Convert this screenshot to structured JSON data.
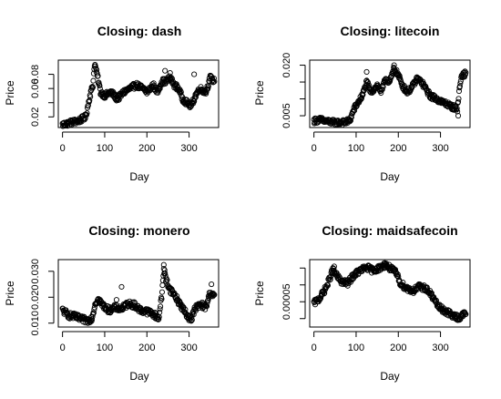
{
  "chart_data": [
    {
      "type": "scatter",
      "title": "Closing: dash",
      "xlabel": "Day",
      "ylabel": "Price",
      "xlim": [
        -10,
        370
      ],
      "ylim": [
        0.005,
        0.1
      ],
      "xticks": [
        0,
        100,
        200,
        300
      ],
      "yticks": [
        0.02,
        0.04,
        0.06,
        0.08
      ],
      "yticklabels": [
        "0.02",
        "",
        "0.06",
        "0.08"
      ],
      "anchors": [
        [
          0,
          0.009
        ],
        [
          20,
          0.012
        ],
        [
          40,
          0.015
        ],
        [
          55,
          0.02
        ],
        [
          65,
          0.05
        ],
        [
          72,
          0.065
        ],
        [
          76,
          0.095
        ],
        [
          82,
          0.08
        ],
        [
          90,
          0.055
        ],
        [
          100,
          0.05
        ],
        [
          115,
          0.055
        ],
        [
          130,
          0.045
        ],
        [
          145,
          0.055
        ],
        [
          160,
          0.06
        ],
        [
          175,
          0.065
        ],
        [
          190,
          0.06
        ],
        [
          200,
          0.055
        ],
        [
          215,
          0.065
        ],
        [
          225,
          0.055
        ],
        [
          235,
          0.07
        ],
        [
          245,
          0.07
        ],
        [
          255,
          0.075
        ],
        [
          265,
          0.065
        ],
        [
          275,
          0.06
        ],
        [
          285,
          0.045
        ],
        [
          295,
          0.04
        ],
        [
          305,
          0.035
        ],
        [
          315,
          0.05
        ],
        [
          325,
          0.06
        ],
        [
          340,
          0.055
        ],
        [
          350,
          0.075
        ],
        [
          360,
          0.07
        ]
      ],
      "outliers": [
        [
          312,
          0.08
        ],
        [
          243,
          0.085
        ],
        [
          255,
          0.082
        ]
      ],
      "spread": 0.004
    },
    {
      "type": "scatter",
      "title": "Closing: litecoin",
      "xlabel": "Day",
      "ylabel": "Price",
      "xlim": [
        -10,
        370
      ],
      "ylim": [
        0.0015,
        0.0215
      ],
      "xticks": [
        0,
        100,
        200,
        300
      ],
      "yticks": [
        0.005,
        0.01,
        0.015,
        0.02
      ],
      "yticklabels": [
        "0.005",
        "",
        "",
        "0.020"
      ],
      "anchors": [
        [
          0,
          0.0035
        ],
        [
          15,
          0.0038
        ],
        [
          30,
          0.0033
        ],
        [
          50,
          0.003
        ],
        [
          70,
          0.003
        ],
        [
          85,
          0.0035
        ],
        [
          95,
          0.007
        ],
        [
          105,
          0.009
        ],
        [
          115,
          0.011
        ],
        [
          125,
          0.015
        ],
        [
          135,
          0.012
        ],
        [
          150,
          0.014
        ],
        [
          160,
          0.012
        ],
        [
          170,
          0.016
        ],
        [
          180,
          0.015
        ],
        [
          190,
          0.019
        ],
        [
          200,
          0.017
        ],
        [
          210,
          0.014
        ],
        [
          220,
          0.012
        ],
        [
          230,
          0.013
        ],
        [
          245,
          0.016
        ],
        [
          255,
          0.015
        ],
        [
          265,
          0.013
        ],
        [
          275,
          0.011
        ],
        [
          290,
          0.01
        ],
        [
          305,
          0.009
        ],
        [
          315,
          0.0085
        ],
        [
          330,
          0.0075
        ],
        [
          340,
          0.007
        ],
        [
          345,
          0.013
        ],
        [
          350,
          0.017
        ],
        [
          360,
          0.0175
        ]
      ],
      "outliers": [
        [
          342,
          0.005
        ],
        [
          190,
          0.02
        ],
        [
          125,
          0.018
        ]
      ],
      "spread": 0.0008
    },
    {
      "type": "scatter",
      "title": "Closing: monero",
      "xlabel": "Day",
      "ylabel": "Price",
      "xlim": [
        -10,
        370
      ],
      "ylim": [
        0.0085,
        0.0345
      ],
      "xticks": [
        0,
        100,
        200,
        300
      ],
      "yticks": [
        0.01,
        0.02,
        0.03
      ],
      "yticklabels": [
        "0.010",
        "0.020",
        "0.030"
      ],
      "anchors": [
        [
          0,
          0.015
        ],
        [
          15,
          0.013
        ],
        [
          30,
          0.0125
        ],
        [
          45,
          0.0115
        ],
        [
          60,
          0.011
        ],
        [
          70,
          0.012
        ],
        [
          78,
          0.018
        ],
        [
          85,
          0.019
        ],
        [
          95,
          0.017
        ],
        [
          110,
          0.015
        ],
        [
          125,
          0.016
        ],
        [
          140,
          0.0155
        ],
        [
          155,
          0.0175
        ],
        [
          170,
          0.017
        ],
        [
          185,
          0.015
        ],
        [
          200,
          0.0145
        ],
        [
          215,
          0.0135
        ],
        [
          228,
          0.012
        ],
        [
          235,
          0.02
        ],
        [
          240,
          0.031
        ],
        [
          245,
          0.027
        ],
        [
          255,
          0.023
        ],
        [
          265,
          0.021
        ],
        [
          280,
          0.017
        ],
        [
          295,
          0.013
        ],
        [
          305,
          0.0115
        ],
        [
          315,
          0.016
        ],
        [
          330,
          0.017
        ],
        [
          340,
          0.016
        ],
        [
          350,
          0.022
        ],
        [
          360,
          0.02
        ]
      ],
      "outliers": [
        [
          140,
          0.024
        ],
        [
          128,
          0.019
        ],
        [
          240,
          0.0325
        ],
        [
          353,
          0.025
        ]
      ],
      "spread": 0.0012
    },
    {
      "type": "scatter",
      "title": "Closing: maidsafecoin",
      "xlabel": "Day",
      "ylabel": "Price",
      "xlim": [
        -10,
        370
      ],
      "ylim": [
        2e-05,
        0.0001
      ],
      "xticks": [
        0,
        100,
        200,
        300
      ],
      "yticks": [
        3e-05,
        5e-05,
        7e-05,
        9e-05
      ],
      "yticklabels": [
        "",
        "0.00005",
        "",
        ""
      ],
      "anchors": [
        [
          0,
          4.8e-05
        ],
        [
          15,
          5.5e-05
        ],
        [
          30,
          6.8e-05
        ],
        [
          45,
          8.8e-05
        ],
        [
          55,
          8e-05
        ],
        [
          65,
          7.4e-05
        ],
        [
          80,
          7.2e-05
        ],
        [
          95,
          8.2e-05
        ],
        [
          110,
          8.7e-05
        ],
        [
          125,
          9.1e-05
        ],
        [
          140,
          8.7e-05
        ],
        [
          155,
          9e-05
        ],
        [
          170,
          9.4e-05
        ],
        [
          185,
          8.8e-05
        ],
        [
          195,
          8.4e-05
        ],
        [
          205,
          7.2e-05
        ],
        [
          220,
          6.6e-05
        ],
        [
          235,
          6.3e-05
        ],
        [
          250,
          6.8e-05
        ],
        [
          265,
          6.6e-05
        ],
        [
          280,
          5.7e-05
        ],
        [
          290,
          4.8e-05
        ],
        [
          300,
          4.2e-05
        ],
        [
          315,
          3.8e-05
        ],
        [
          330,
          3.3e-05
        ],
        [
          345,
          3.1e-05
        ],
        [
          355,
          3.5e-05
        ],
        [
          360,
          3.8e-05
        ]
      ],
      "outliers": [
        [
          168,
          9.6e-05
        ],
        [
          48,
          9.2e-05
        ]
      ],
      "spread": 3.5e-06
    }
  ]
}
